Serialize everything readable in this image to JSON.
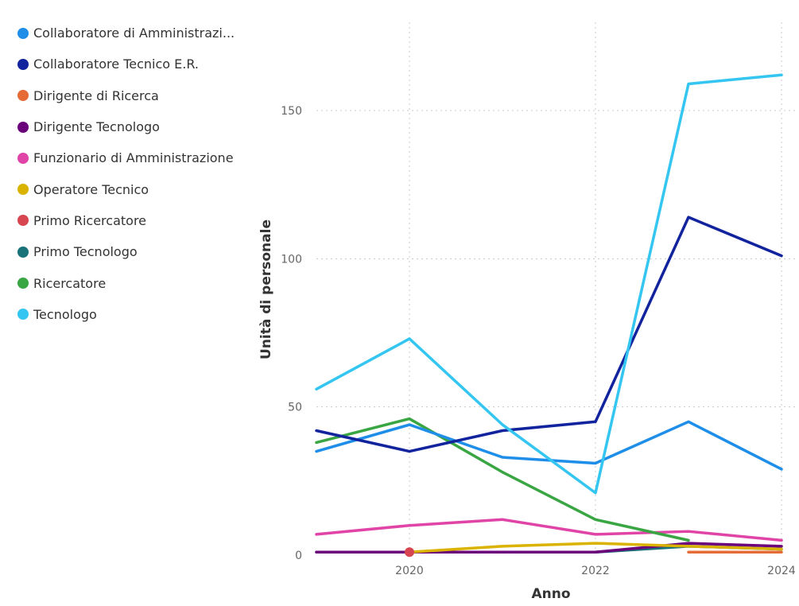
{
  "chart_data": {
    "type": "line",
    "xlabel": "Anno",
    "ylabel": "Unità di personale",
    "x": [
      2019,
      2020,
      2021,
      2022,
      2023,
      2024
    ],
    "xticks": [
      "2020",
      "2022",
      "2024"
    ],
    "yticks": [
      "0",
      "50",
      "100",
      "150"
    ],
    "ylim": [
      0,
      165
    ],
    "grid": true,
    "legend_position": "left",
    "series": [
      {
        "name": "Collaboratore di Amministrazi...",
        "color": "#1f8ee8",
        "values": [
          35,
          44,
          33,
          31,
          45,
          29
        ]
      },
      {
        "name": "Collaboratore Tecnico E.R.",
        "color": "#12239e",
        "values": [
          42,
          35,
          42,
          45,
          114,
          101
        ]
      },
      {
        "name": "Dirigente di Ricerca",
        "color": "#e66c37",
        "values": [
          null,
          null,
          null,
          null,
          1,
          1
        ]
      },
      {
        "name": "Dirigente Tecnologo",
        "color": "#6b007b",
        "values": [
          1,
          1,
          1,
          1,
          4,
          3
        ]
      },
      {
        "name": "Funzionario di Amministrazione",
        "color": "#e044a7",
        "values": [
          7,
          10,
          12,
          7,
          8,
          5
        ]
      },
      {
        "name": "Operatore Tecnico",
        "color": "#d9b300",
        "values": [
          null,
          1,
          3,
          4,
          3,
          2
        ]
      },
      {
        "name": "Primo Ricercatore",
        "color": "#d64550",
        "values": [
          null,
          1,
          null,
          null,
          null,
          null
        ]
      },
      {
        "name": "Primo Tecnologo",
        "color": "#197278",
        "values": [
          1,
          1,
          1,
          1,
          3,
          2
        ]
      },
      {
        "name": "Ricercatore",
        "color": "#3aa543",
        "values": [
          38,
          46,
          28,
          12,
          5,
          null
        ]
      },
      {
        "name": "Tecnologo",
        "color": "#34c6f0",
        "values": [
          56,
          73,
          44,
          21,
          159,
          162
        ]
      }
    ]
  }
}
